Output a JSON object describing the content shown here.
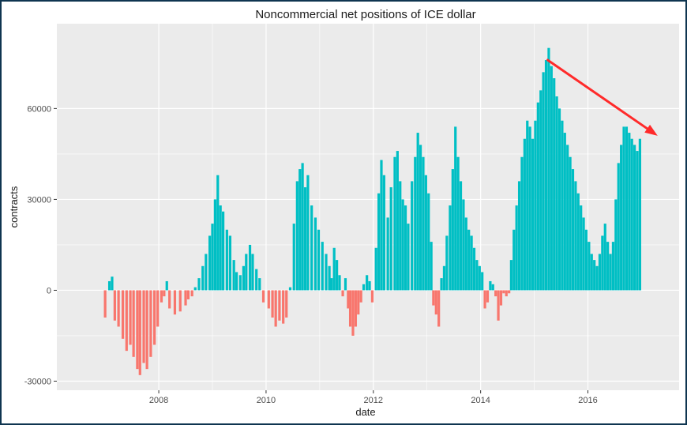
{
  "chart_data": {
    "type": "bar",
    "title": "Noncommercial net positions of ICE dollar",
    "xlabel": "date",
    "ylabel": "contracts",
    "x_ticks": [
      "2008",
      "2010",
      "2012",
      "2014",
      "2016"
    ],
    "x_tick_values": [
      2008,
      2010,
      2012,
      2014,
      2016
    ],
    "y_ticks": [
      "-30000",
      "0",
      "30000",
      "60000"
    ],
    "y_tick_values": [
      -30000,
      0,
      30000,
      60000
    ],
    "xlim": [
      2006.1,
      2017.7
    ],
    "ylim": [
      -33000,
      88000
    ],
    "grid": true,
    "legend": "none",
    "colors": {
      "positive": "#00BFC4",
      "negative": "#F8766D",
      "panel": "#EBEBEB",
      "arrow": "#FF2A2A"
    },
    "series": [
      {
        "values": [
          [
            2007.0,
            -9000
          ],
          [
            2007.08,
            3000
          ],
          [
            2007.13,
            4500
          ],
          [
            2007.18,
            -10000
          ],
          [
            2007.25,
            -12000
          ],
          [
            2007.33,
            -16000
          ],
          [
            2007.4,
            -20000
          ],
          [
            2007.47,
            -18000
          ],
          [
            2007.53,
            -22000
          ],
          [
            2007.6,
            -26000
          ],
          [
            2007.65,
            -28000
          ],
          [
            2007.72,
            -24000
          ],
          [
            2007.78,
            -26000
          ],
          [
            2007.85,
            -22000
          ],
          [
            2007.92,
            -18000
          ],
          [
            2007.98,
            -12000
          ],
          [
            2008.05,
            -4000
          ],
          [
            2008.1,
            -2000
          ],
          [
            2008.15,
            3000
          ],
          [
            2008.2,
            -6000
          ],
          [
            2008.3,
            -8000
          ],
          [
            2008.4,
            -7000
          ],
          [
            2008.5,
            -5000
          ],
          [
            2008.55,
            -3000
          ],
          [
            2008.62,
            -2000
          ],
          [
            2008.68,
            1000
          ],
          [
            2008.75,
            4000
          ],
          [
            2008.82,
            8000
          ],
          [
            2008.88,
            12000
          ],
          [
            2008.95,
            18000
          ],
          [
            2009.0,
            22000
          ],
          [
            2009.05,
            30000
          ],
          [
            2009.1,
            38000
          ],
          [
            2009.15,
            28000
          ],
          [
            2009.2,
            26000
          ],
          [
            2009.27,
            20000
          ],
          [
            2009.33,
            18000
          ],
          [
            2009.4,
            10000
          ],
          [
            2009.45,
            6000
          ],
          [
            2009.52,
            5000
          ],
          [
            2009.58,
            8000
          ],
          [
            2009.63,
            12000
          ],
          [
            2009.7,
            15000
          ],
          [
            2009.75,
            12000
          ],
          [
            2009.82,
            7000
          ],
          [
            2009.88,
            4000
          ],
          [
            2009.95,
            -4000
          ],
          [
            2010.05,
            -6000
          ],
          [
            2010.12,
            -9000
          ],
          [
            2010.18,
            -12000
          ],
          [
            2010.25,
            -10000
          ],
          [
            2010.32,
            -11000
          ],
          [
            2010.38,
            -9000
          ],
          [
            2010.45,
            1000
          ],
          [
            2010.52,
            22000
          ],
          [
            2010.58,
            36000
          ],
          [
            2010.63,
            40000
          ],
          [
            2010.68,
            42000
          ],
          [
            2010.73,
            34000
          ],
          [
            2010.78,
            38000
          ],
          [
            2010.85,
            28000
          ],
          [
            2010.92,
            24000
          ],
          [
            2010.98,
            20000
          ],
          [
            2011.05,
            16000
          ],
          [
            2011.12,
            12000
          ],
          [
            2011.18,
            8000
          ],
          [
            2011.22,
            4000
          ],
          [
            2011.27,
            14000
          ],
          [
            2011.32,
            10000
          ],
          [
            2011.37,
            5000
          ],
          [
            2011.43,
            -2000
          ],
          [
            2011.48,
            4000
          ],
          [
            2011.53,
            -6000
          ],
          [
            2011.57,
            -12000
          ],
          [
            2011.62,
            -15000
          ],
          [
            2011.67,
            -12000
          ],
          [
            2011.72,
            -8000
          ],
          [
            2011.77,
            -4000
          ],
          [
            2011.82,
            2000
          ],
          [
            2011.88,
            5000
          ],
          [
            2011.93,
            3000
          ],
          [
            2011.98,
            -4000
          ],
          [
            2012.05,
            14000
          ],
          [
            2012.1,
            32000
          ],
          [
            2012.15,
            43000
          ],
          [
            2012.2,
            38000
          ],
          [
            2012.27,
            24000
          ],
          [
            2012.33,
            34000
          ],
          [
            2012.4,
            44000
          ],
          [
            2012.45,
            46000
          ],
          [
            2012.5,
            36000
          ],
          [
            2012.55,
            30000
          ],
          [
            2012.6,
            28000
          ],
          [
            2012.65,
            22000
          ],
          [
            2012.72,
            36000
          ],
          [
            2012.78,
            44000
          ],
          [
            2012.83,
            52000
          ],
          [
            2012.88,
            48000
          ],
          [
            2012.93,
            44000
          ],
          [
            2012.98,
            38000
          ],
          [
            2013.03,
            32000
          ],
          [
            2013.08,
            16000
          ],
          [
            2013.12,
            -5000
          ],
          [
            2013.17,
            -8000
          ],
          [
            2013.22,
            -12000
          ],
          [
            2013.27,
            4000
          ],
          [
            2013.32,
            8000
          ],
          [
            2013.37,
            18000
          ],
          [
            2013.43,
            28000
          ],
          [
            2013.48,
            40000
          ],
          [
            2013.53,
            54000
          ],
          [
            2013.58,
            44000
          ],
          [
            2013.63,
            36000
          ],
          [
            2013.68,
            30000
          ],
          [
            2013.73,
            24000
          ],
          [
            2013.78,
            20000
          ],
          [
            2013.83,
            18000
          ],
          [
            2013.88,
            14000
          ],
          [
            2013.93,
            10000
          ],
          [
            2013.98,
            8000
          ],
          [
            2014.03,
            6000
          ],
          [
            2014.08,
            -6000
          ],
          [
            2014.13,
            -4000
          ],
          [
            2014.18,
            3000
          ],
          [
            2014.23,
            2000
          ],
          [
            2014.28,
            -2000
          ],
          [
            2014.33,
            -10000
          ],
          [
            2014.38,
            -5000
          ],
          [
            2014.43,
            -1000
          ],
          [
            2014.48,
            -2000
          ],
          [
            2014.53,
            -1000
          ],
          [
            2014.57,
            10000
          ],
          [
            2014.62,
            20000
          ],
          [
            2014.67,
            28000
          ],
          [
            2014.72,
            36000
          ],
          [
            2014.77,
            44000
          ],
          [
            2014.82,
            50000
          ],
          [
            2014.87,
            56000
          ],
          [
            2014.92,
            54000
          ],
          [
            2014.97,
            50000
          ],
          [
            2015.02,
            56000
          ],
          [
            2015.07,
            62000
          ],
          [
            2015.12,
            66000
          ],
          [
            2015.17,
            72000
          ],
          [
            2015.22,
            76000
          ],
          [
            2015.27,
            80000
          ],
          [
            2015.32,
            74000
          ],
          [
            2015.37,
            70000
          ],
          [
            2015.42,
            64000
          ],
          [
            2015.47,
            60000
          ],
          [
            2015.52,
            56000
          ],
          [
            2015.57,
            52000
          ],
          [
            2015.62,
            48000
          ],
          [
            2015.67,
            44000
          ],
          [
            2015.72,
            40000
          ],
          [
            2015.77,
            36000
          ],
          [
            2015.82,
            32000
          ],
          [
            2015.87,
            28000
          ],
          [
            2015.92,
            24000
          ],
          [
            2015.97,
            20000
          ],
          [
            2016.02,
            16000
          ],
          [
            2016.07,
            12000
          ],
          [
            2016.12,
            10000
          ],
          [
            2016.17,
            8000
          ],
          [
            2016.22,
            12000
          ],
          [
            2016.27,
            18000
          ],
          [
            2016.32,
            22000
          ],
          [
            2016.37,
            16000
          ],
          [
            2016.42,
            12000
          ],
          [
            2016.47,
            16000
          ],
          [
            2016.52,
            30000
          ],
          [
            2016.57,
            42000
          ],
          [
            2016.62,
            48000
          ],
          [
            2016.67,
            54000
          ],
          [
            2016.72,
            54000
          ],
          [
            2016.77,
            52000
          ],
          [
            2016.82,
            50000
          ],
          [
            2016.87,
            48000
          ],
          [
            2016.92,
            46000
          ],
          [
            2016.97,
            50000
          ]
        ]
      }
    ],
    "annotations": [
      {
        "type": "arrow",
        "from": [
          2015.25,
          76000
        ],
        "to": [
          2017.3,
          51000
        ]
      }
    ]
  }
}
